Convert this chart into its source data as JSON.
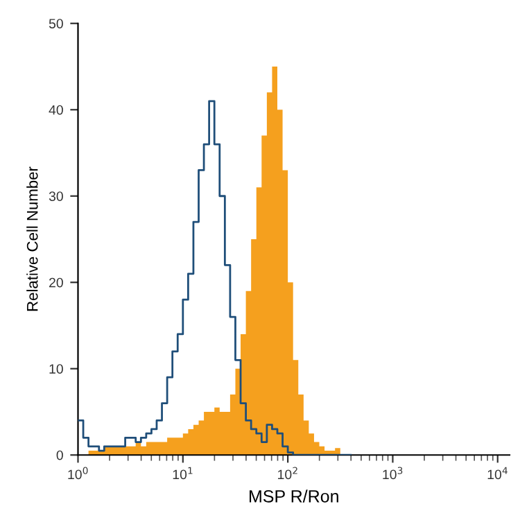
{
  "chart_data": {
    "type": "histogram",
    "xlabel": "MSP R/Ron",
    "ylabel": "Relative Cell Number",
    "log": "x",
    "bins": [
      1,
      1.122,
      1.259,
      1.413,
      1.585,
      1.778,
      1.995,
      2.239,
      2.512,
      2.818,
      3.162,
      3.548,
      3.981,
      4.467,
      5.012,
      5.623,
      6.31,
      7.079,
      7.943,
      8.913,
      10,
      11.22,
      12.59,
      14.13,
      15.85,
      17.78,
      19.95,
      22.39,
      25.12,
      28.18,
      31.62,
      35.48,
      39.81,
      44.67,
      50.12,
      56.23,
      63.1,
      70.79,
      79.43,
      89.13,
      100,
      112.2,
      125.9,
      141.3,
      158.5,
      177.8,
      199.5,
      223.9,
      251.2,
      281.8,
      316.2,
      354.8,
      398.1
    ],
    "series": [
      {
        "color": "#f5a01e",
        "values": [
          0,
          0,
          0.5,
          0.5,
          0.5,
          1,
          1,
          1,
          1,
          1,
          1,
          1.5,
          1,
          1.5,
          1.5,
          1.5,
          1.5,
          2,
          2,
          2,
          2.5,
          3,
          3.5,
          4,
          5,
          5,
          5.5,
          5,
          5,
          7,
          10,
          14,
          19,
          25,
          31,
          37,
          42,
          45,
          40,
          33,
          20,
          11,
          7,
          4,
          2.5,
          1.5,
          1,
          0.5,
          0.5,
          0.8,
          0,
          0
        ]
      },
      {
        "type": "step",
        "color": "#1f4e79",
        "x": [
          1,
          1.122,
          1.259,
          1.413,
          1.585,
          1.778,
          1.995,
          2.239,
          2.512,
          2.818,
          3.162,
          3.548,
          3.981,
          4.467,
          5.012,
          5.623,
          6.31,
          7.079,
          7.943,
          8.913,
          10,
          11.22,
          12.59,
          14.13,
          15.85,
          17.78,
          19.95,
          22.39,
          25.12,
          28.18,
          31.62,
          35.48,
          39.81,
          44.67,
          50.12,
          56.23,
          63.1,
          70.79,
          79.43,
          89.13,
          100,
          112.2,
          125.9,
          141.3,
          158.5,
          177.8,
          199.5,
          223.9,
          251.2,
          281.8,
          316.2,
          354.8,
          398.1
        ],
        "values": [
          4,
          2,
          1,
          1,
          0.5,
          1,
          1,
          1,
          1,
          2,
          2,
          1.5,
          2,
          2.5,
          3,
          4,
          6,
          9,
          12,
          14,
          18,
          21,
          27,
          33,
          36,
          41,
          36,
          30,
          22,
          16,
          11,
          6,
          4,
          3,
          2.5,
          1.5,
          3.5,
          3,
          2.5,
          1,
          0.3,
          0,
          0,
          0,
          0,
          0,
          0,
          0,
          0,
          0,
          0,
          0,
          0
        ]
      }
    ],
    "xlim": [
      1,
      13000
    ],
    "xticks": [
      {
        "value": 1,
        "label": "10$^{0}$"
      },
      {
        "value": 10,
        "label": "10$^{1}$"
      },
      {
        "value": 100,
        "label": "10$^{2}$"
      },
      {
        "value": 1000,
        "label": "10$^{3}$"
      },
      {
        "value": 10000,
        "label": "10$^{4}$"
      }
    ],
    "ylim": [
      0,
      50
    ],
    "yticks": [
      0,
      10,
      20,
      30,
      40,
      50
    ],
    "grid": false,
    "legend": false
  }
}
